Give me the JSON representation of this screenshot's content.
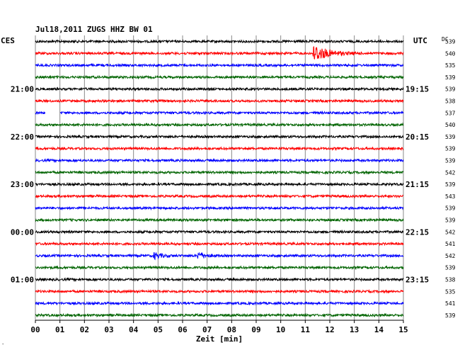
{
  "chart_data": {
    "type": "line",
    "title": "Jul18,2011   ZUGS HHZ BW 01",
    "left_zone": "CES",
    "right_zone": "UTC",
    "dc_header": "DC",
    "xlabel": "Zeit [min]",
    "xlim": [
      0,
      15
    ],
    "x_ticks": [
      "00",
      "01",
      "02",
      "03",
      "04",
      "05",
      "06",
      "07",
      "08",
      "09",
      "10",
      "11",
      "12",
      "13",
      "14",
      "15"
    ],
    "grid": true,
    "trace_colors": [
      "#000000",
      "#ff0000",
      "#0000ff",
      "#006400"
    ],
    "left_hour_labels": [
      {
        "row": 4,
        "label": "21:00"
      },
      {
        "row": 8,
        "label": "22:00"
      },
      {
        "row": 12,
        "label": "23:00"
      },
      {
        "row": 16,
        "label": "00:00"
      },
      {
        "row": 20,
        "label": "01:00"
      }
    ],
    "right_hour_labels": [
      {
        "row": 4,
        "label": "19:15"
      },
      {
        "row": 8,
        "label": "20:15"
      },
      {
        "row": 12,
        "label": "21:15"
      },
      {
        "row": 16,
        "label": "22:15"
      },
      {
        "row": 20,
        "label": "23:15"
      }
    ],
    "dc_values": [
      539,
      540,
      535,
      539,
      539,
      538,
      537,
      540,
      539,
      539,
      539,
      542,
      539,
      543,
      539,
      539,
      542,
      541,
      542,
      539,
      538,
      535,
      541,
      539
    ],
    "events": [
      {
        "row": 1,
        "start_min": 11.3,
        "end_min": 13.3,
        "peak_amplitude": 1.0
      },
      {
        "row": 18,
        "start_min": 4.8,
        "end_min": 5.9,
        "peak_amplitude": 0.35
      },
      {
        "row": 18,
        "start_min": 6.6,
        "end_min": 7.6,
        "peak_amplitude": 0.45
      }
    ],
    "gaps": [
      {
        "row": 6,
        "start_min": 0.4,
        "end_min": 1.0
      }
    ]
  }
}
